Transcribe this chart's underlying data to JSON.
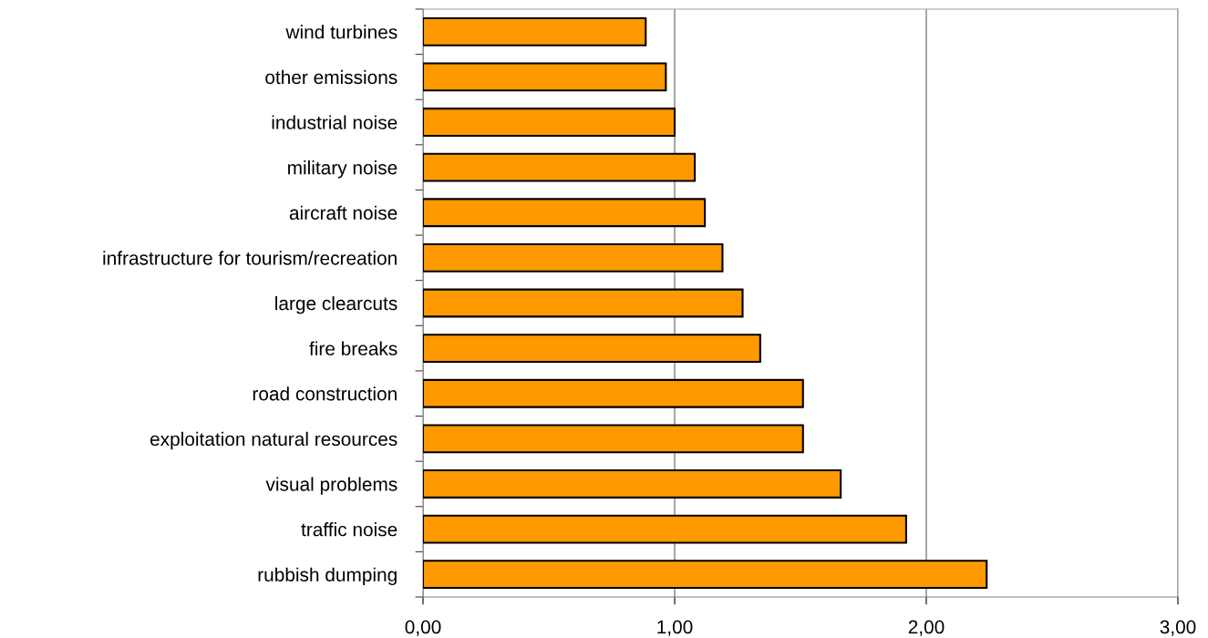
{
  "chart_data": {
    "type": "bar",
    "orientation": "horizontal",
    "categories": [
      "wind turbines",
      "other emissions",
      "industrial noise",
      "military noise",
      "aircraft noise",
      "infrastructure for tourism/recreation",
      "large clearcuts",
      "fire breaks",
      "road construction",
      "exploitation natural resources",
      "visual problems",
      "traffic noise",
      "rubbish dumping"
    ],
    "values": [
      0.885,
      0.965,
      1.0,
      1.08,
      1.12,
      1.19,
      1.27,
      1.34,
      1.51,
      1.51,
      1.66,
      1.92,
      2.24
    ],
    "color": "#ff9900",
    "xlim": [
      0,
      3
    ],
    "xticks": [
      {
        "value": 0,
        "label": "0,00"
      },
      {
        "value": 1,
        "label": "1,00"
      },
      {
        "value": 2,
        "label": "2,00"
      },
      {
        "value": 3,
        "label": "3,00"
      }
    ],
    "grid": "x"
  }
}
